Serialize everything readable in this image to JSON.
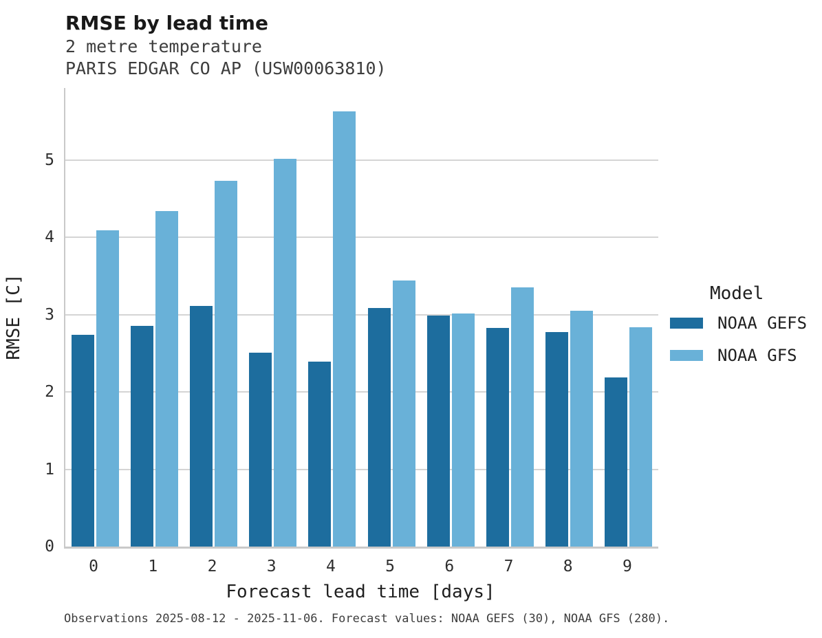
{
  "header": {
    "title": "RMSE by lead time",
    "subtitle": "2 metre temperature",
    "station": "PARIS EDGAR CO AP (USW00063810)"
  },
  "chart_data": {
    "type": "bar",
    "categories": [
      "0",
      "1",
      "2",
      "3",
      "4",
      "5",
      "6",
      "7",
      "8",
      "9"
    ],
    "series": [
      {
        "name": "NOAA GEFS",
        "color": "#1d6d9e",
        "values": [
          2.74,
          2.86,
          3.11,
          2.51,
          2.39,
          3.09,
          2.99,
          2.83,
          2.78,
          2.19
        ]
      },
      {
        "name": "NOAA GFS",
        "color": "#69b1d8",
        "values": [
          4.09,
          4.34,
          4.73,
          5.02,
          5.63,
          3.44,
          3.02,
          3.35,
          3.05,
          2.84
        ]
      }
    ],
    "title": "RMSE by lead time",
    "xlabel": "Forecast lead time [days]",
    "ylabel": "RMSE [C]",
    "ylim": [
      0,
      5.93
    ],
    "yticks": [
      "0",
      "1",
      "2",
      "3",
      "4",
      "5"
    ],
    "grid": "horizontal",
    "legend_title": "Model",
    "legend_position": "right",
    "gridline_color": "#d4d4d4",
    "axis_color": "#c9c9c9"
  },
  "legend": {
    "title": "Model"
  },
  "caption": {
    "text": "Observations 2025-08-12 - 2025-11-06. Forecast values: NOAA GEFS (30), NOAA GFS (280)."
  }
}
